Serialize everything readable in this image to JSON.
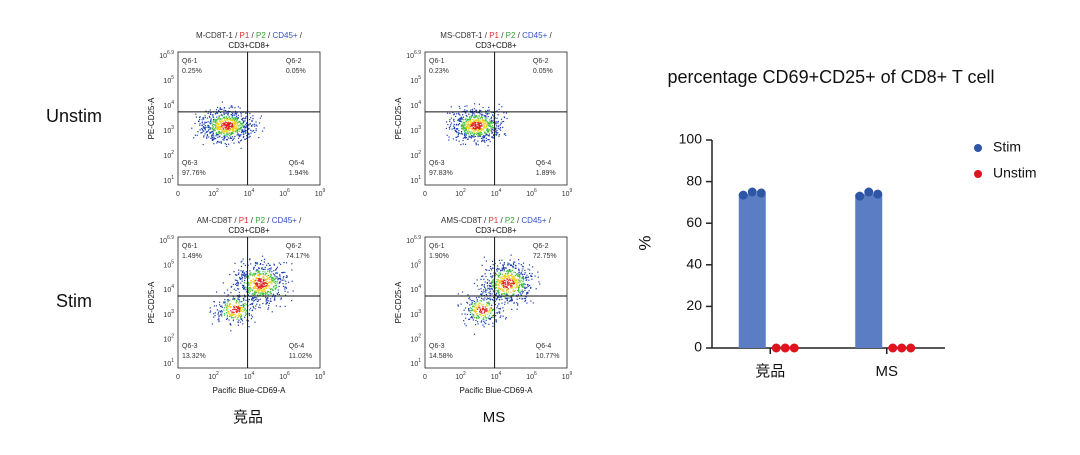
{
  "row_labels": [
    "Unstim",
    "Stim"
  ],
  "column_labels": [
    "竞品",
    "MS"
  ],
  "flow_axes": {
    "ylabel": "PE-CD25-A",
    "xlabel": "Pacific Blue-CD69-A",
    "yticks": [
      [
        "10",
        "6.9"
      ],
      [
        "10",
        "5"
      ],
      [
        "10",
        "4"
      ],
      [
        "10",
        "3"
      ],
      [
        "10",
        "2"
      ],
      [
        "10",
        "1"
      ]
    ],
    "xticks": [
      [
        "0",
        ""
      ],
      [
        "10",
        "2"
      ],
      [
        "10",
        "4"
      ],
      [
        "10",
        "6"
      ],
      [
        "10",
        "9"
      ]
    ]
  },
  "flow_plots": [
    {
      "title_segments": [
        {
          "text": "M-CD8T-1 / ",
          "color": "#333333"
        },
        {
          "text": "P1",
          "color": "#e03030"
        },
        {
          "text": " / ",
          "color": "#333333"
        },
        {
          "text": "P2",
          "color": "#30a030"
        },
        {
          "text": " / ",
          "color": "#333333"
        },
        {
          "text": "CD45+",
          "color": "#3050c0"
        },
        {
          "text": " /",
          "color": "#333333"
        }
      ],
      "subtitle": "CD3+CD8+",
      "quadrants": [
        [
          "Q6-1",
          "0.25%"
        ],
        [
          "Q6-2",
          "0.05%"
        ],
        [
          "Q6-3",
          "97.76%"
        ],
        [
          "Q6-4",
          "1.94%"
        ]
      ]
    },
    {
      "title_segments": [
        {
          "text": "MS-CD8T-1 / ",
          "color": "#333333"
        },
        {
          "text": "P1",
          "color": "#e03030"
        },
        {
          "text": " / ",
          "color": "#333333"
        },
        {
          "text": "P2",
          "color": "#30a030"
        },
        {
          "text": " / ",
          "color": "#333333"
        },
        {
          "text": "CD45+",
          "color": "#3050c0"
        },
        {
          "text": " /",
          "color": "#333333"
        }
      ],
      "subtitle": "CD3+CD8+",
      "quadrants": [
        [
          "Q6-1",
          "0.23%"
        ],
        [
          "Q6-2",
          "0.05%"
        ],
        [
          "Q6-3",
          "97.83%"
        ],
        [
          "Q6-4",
          "1.89%"
        ]
      ]
    },
    {
      "title_segments": [
        {
          "text": "AM-CD8T / ",
          "color": "#333333"
        },
        {
          "text": "P1",
          "color": "#e03030"
        },
        {
          "text": " / ",
          "color": "#333333"
        },
        {
          "text": "P2",
          "color": "#30a030"
        },
        {
          "text": " / ",
          "color": "#333333"
        },
        {
          "text": "CD45+",
          "color": "#3050c0"
        },
        {
          "text": " /",
          "color": "#333333"
        }
      ],
      "subtitle": "CD3+CD8+",
      "quadrants": [
        [
          "Q6-1",
          "1.49%"
        ],
        [
          "Q6-2",
          "74.17%"
        ],
        [
          "Q6-3",
          "13.32%"
        ],
        [
          "Q6-4",
          "11.02%"
        ]
      ]
    },
    {
      "title_segments": [
        {
          "text": "AMS-CD8T / ",
          "color": "#333333"
        },
        {
          "text": "P1",
          "color": "#e03030"
        },
        {
          "text": " / ",
          "color": "#333333"
        },
        {
          "text": "P2",
          "color": "#30a030"
        },
        {
          "text": " / ",
          "color": "#333333"
        },
        {
          "text": "CD45+",
          "color": "#3050c0"
        },
        {
          "text": " /",
          "color": "#333333"
        }
      ],
      "subtitle": "CD3+CD8+",
      "quadrants": [
        [
          "Q6-1",
          "1.90%"
        ],
        [
          "Q6-2",
          "72.75%"
        ],
        [
          "Q6-3",
          "14.58%"
        ],
        [
          "Q6-4",
          "10.77%"
        ]
      ]
    }
  ],
  "chart_data": {
    "type": "bar",
    "title": "percentage CD69+CD25+ of CD8+ T cell",
    "ylabel": "%",
    "categories": [
      "竞品",
      "MS"
    ],
    "series": [
      {
        "name": "Stim",
        "color": "#2f56a6",
        "bar_color": "#5a7dc4",
        "values": [
          74,
          74
        ],
        "points": [
          [
            73.5,
            75,
            74.5
          ],
          [
            73,
            75,
            74
          ]
        ]
      },
      {
        "name": "Unstim",
        "color": "#e0141e",
        "bar_color": "#e0141e",
        "values": [
          0,
          0
        ],
        "points": [
          [
            0,
            0,
            0
          ],
          [
            0,
            0,
            0
          ]
        ]
      }
    ],
    "ylim": [
      0,
      100
    ],
    "yticks": [
      0,
      20,
      40,
      60,
      80,
      100
    ],
    "legend": "right"
  }
}
